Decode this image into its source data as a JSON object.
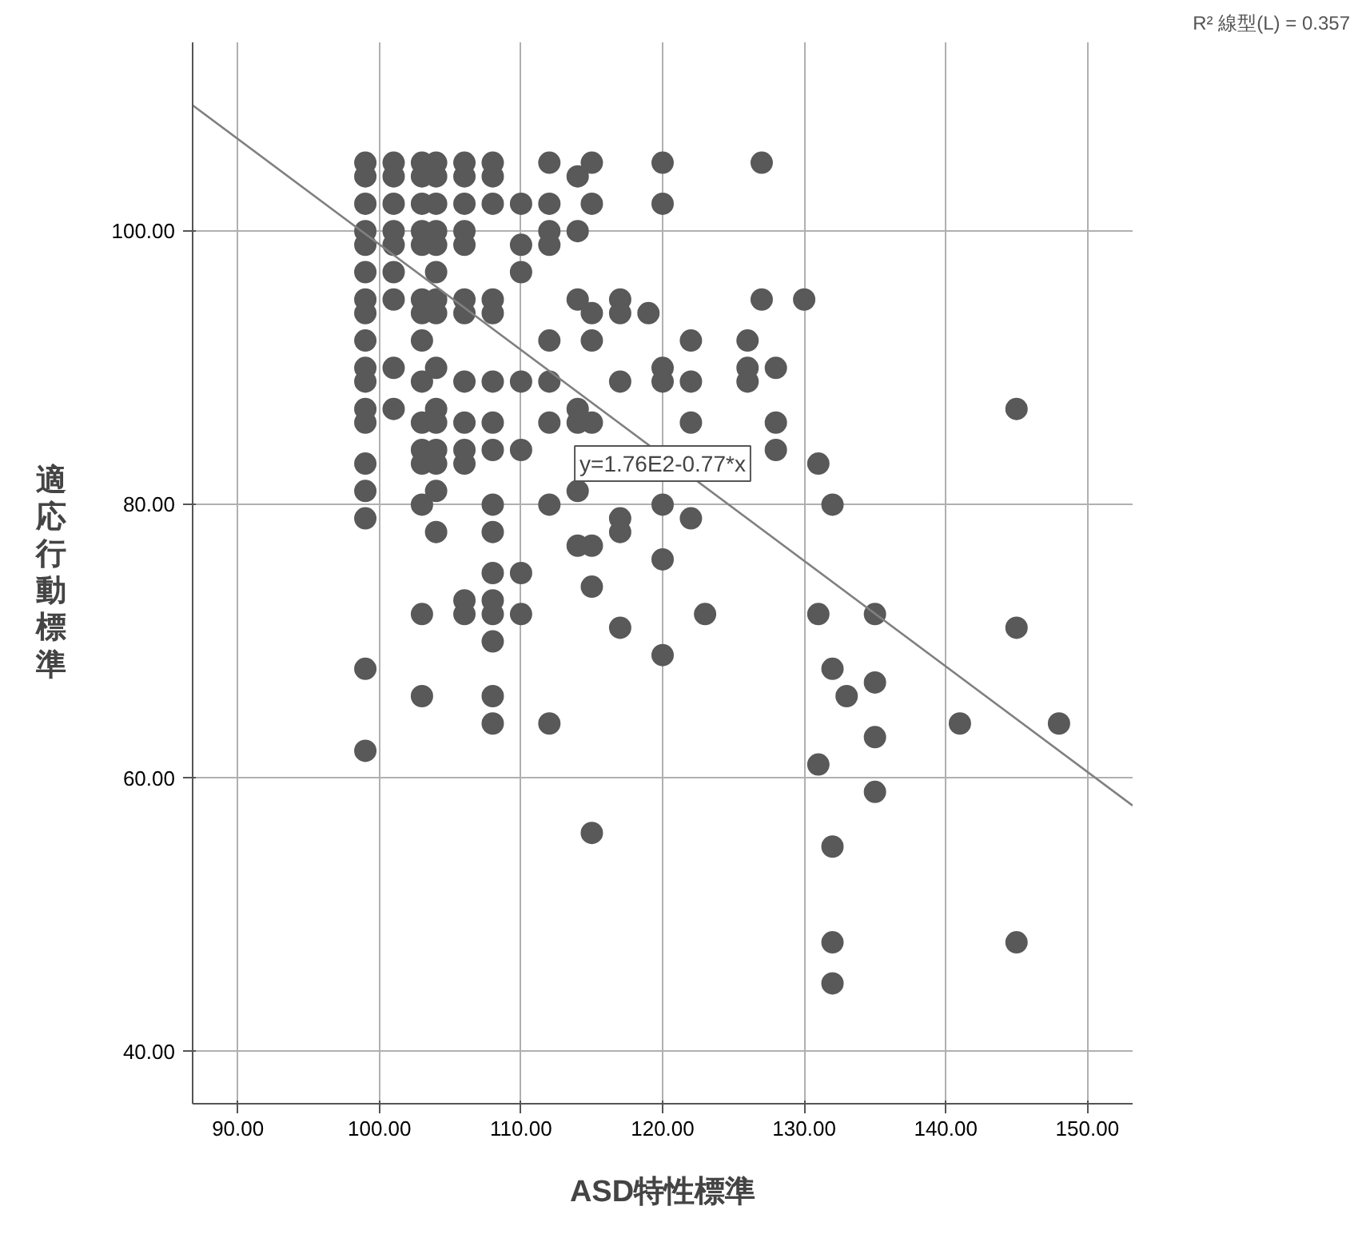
{
  "chart_data": {
    "type": "scatter",
    "xlabel": "ASD特性標準",
    "ylabel": "適応行動標準",
    "xlim": [
      86.8,
      153.2
    ],
    "ylim": [
      36.2,
      113.8
    ],
    "xticks": [
      {
        "value": 90,
        "label": "90.00"
      },
      {
        "value": 100,
        "label": "100.00"
      },
      {
        "value": 110,
        "label": "110.00"
      },
      {
        "value": 120,
        "label": "120.00"
      },
      {
        "value": 130,
        "label": "130.00"
      },
      {
        "value": 140,
        "label": "140.00"
      },
      {
        "value": 150,
        "label": "150.00"
      }
    ],
    "yticks": [
      {
        "value": 40,
        "label": "40.00"
      },
      {
        "value": 60,
        "label": "60.00"
      },
      {
        "value": 80,
        "label": "80.00"
      },
      {
        "value": 100,
        "label": "100.00"
      }
    ],
    "grid": true,
    "marker": "circle",
    "series": [
      {
        "color": "#595959",
        "x": [
          99,
          99,
          99,
          99,
          99,
          99,
          99,
          99,
          99,
          99,
          99,
          99,
          99,
          99,
          99,
          99,
          99,
          99,
          101,
          101,
          101,
          101,
          101,
          101,
          101,
          101,
          101,
          103,
          103,
          103,
          103,
          103,
          103,
          103,
          103,
          103,
          103,
          103,
          103,
          103,
          103,
          103,
          104,
          104,
          104,
          104,
          104,
          104,
          104,
          104,
          104,
          104,
          104,
          104,
          104,
          104,
          104,
          106,
          106,
          106,
          106,
          106,
          106,
          106,
          106,
          106,
          106,
          106,
          106,
          106,
          108,
          108,
          108,
          108,
          108,
          108,
          108,
          108,
          108,
          108,
          108,
          108,
          108,
          108,
          108,
          108,
          110,
          110,
          110,
          110,
          110,
          110,
          110,
          112,
          112,
          112,
          112,
          112,
          112,
          112,
          112,
          112,
          114,
          114,
          114,
          114,
          114,
          114,
          114,
          115,
          115,
          115,
          115,
          115,
          115,
          115,
          115,
          117,
          117,
          117,
          117,
          117,
          117,
          119,
          120,
          120,
          120,
          120,
          120,
          120,
          120,
          122,
          122,
          122,
          122,
          123,
          126,
          126,
          126,
          127,
          127,
          128,
          128,
          128,
          130,
          131,
          131,
          131,
          132,
          132,
          132,
          132,
          132,
          133,
          135,
          135,
          135,
          135,
          141,
          145,
          145,
          145,
          148
        ],
        "values": [
          105,
          104,
          102,
          100,
          99,
          97,
          95,
          94,
          92,
          90,
          89,
          87,
          86,
          83,
          81,
          79,
          68,
          62,
          105,
          104,
          102,
          100,
          99,
          97,
          95,
          90,
          87,
          105,
          104,
          102,
          100,
          99,
          95,
          94,
          92,
          89,
          86,
          84,
          83,
          80,
          72,
          66,
          105,
          104,
          102,
          100,
          99,
          97,
          95,
          94,
          90,
          87,
          86,
          84,
          83,
          81,
          78,
          105,
          104,
          102,
          100,
          99,
          95,
          94,
          89,
          86,
          84,
          83,
          73,
          72,
          105,
          104,
          102,
          95,
          94,
          89,
          86,
          84,
          80,
          78,
          75,
          73,
          72,
          70,
          66,
          64,
          102,
          99,
          97,
          89,
          84,
          75,
          72,
          105,
          102,
          100,
          99,
          92,
          89,
          86,
          80,
          64,
          104,
          100,
          95,
          87,
          86,
          81,
          77,
          105,
          102,
          94,
          92,
          86,
          77,
          74,
          56,
          95,
          94,
          89,
          79,
          78,
          71,
          94,
          105,
          102,
          90,
          89,
          80,
          76,
          69,
          92,
          89,
          86,
          79,
          72,
          92,
          90,
          89,
          105,
          95,
          90,
          86,
          84,
          95,
          83,
          72,
          61,
          80,
          68,
          55,
          48,
          45,
          66,
          72,
          67,
          63,
          59,
          64,
          87,
          71,
          48,
          64
        ]
      },
      {
        "type": "line",
        "color": "#808080",
        "marker": "none",
        "x": [
          86.8,
          153.2
        ],
        "values": [
          109.2,
          58.0
        ]
      }
    ],
    "annotations": [
      {
        "text": "y=1.76E2-0.77*x",
        "x": 120,
        "y": 83
      },
      "R² 線型(L) = 0.357"
    ]
  }
}
